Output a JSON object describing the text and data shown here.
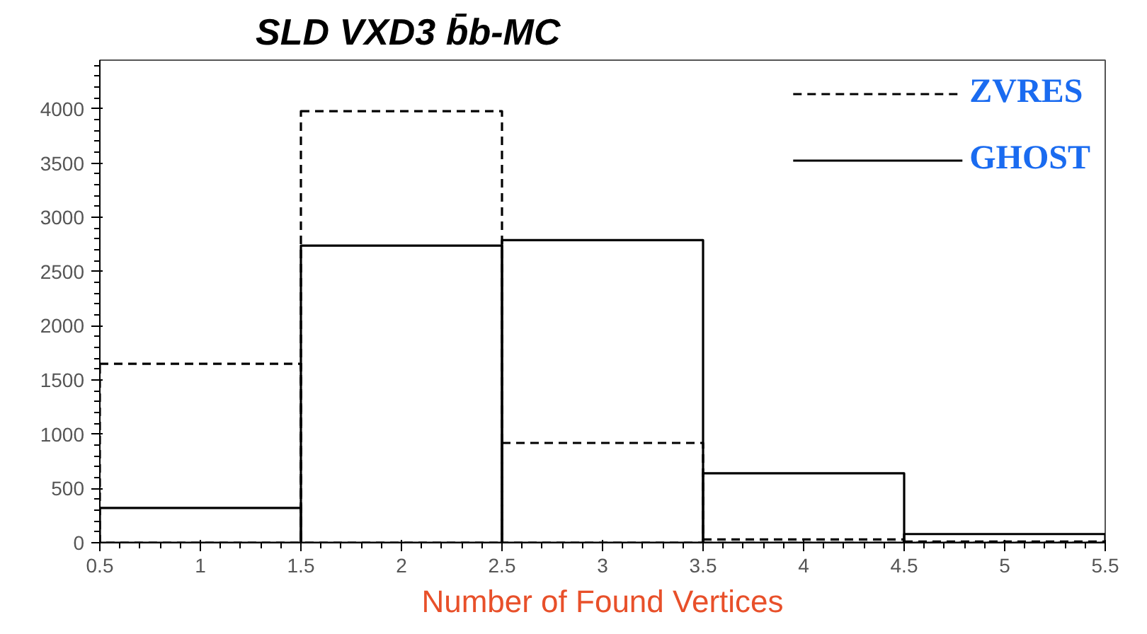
{
  "chart_data": {
    "type": "histogram",
    "title": "SLD VXD3  b̄b-MC",
    "xlabel": "Number of Found Vertices",
    "bins": [
      0.5,
      1.5,
      2.5,
      3.5,
      4.5,
      5.5
    ],
    "series": [
      {
        "name": "ZVRES",
        "color": "#000000",
        "line_style": "dashed",
        "values": [
          1650,
          3980,
          920,
          30,
          10
        ]
      },
      {
        "name": "GHOST",
        "color": "#000000",
        "line_style": "solid",
        "values": [
          320,
          2740,
          2790,
          640,
          80
        ]
      }
    ],
    "xlim": [
      0.5,
      5.5
    ],
    "ylim": [
      0,
      4450
    ],
    "xticks": [
      0.5,
      1,
      1.5,
      2,
      2.5,
      3,
      3.5,
      4,
      4.5,
      5,
      5.5
    ],
    "yticks": [
      0,
      500,
      1000,
      1500,
      2000,
      2500,
      3000,
      3500,
      4000
    ],
    "grid": false,
    "legend": "top right"
  }
}
